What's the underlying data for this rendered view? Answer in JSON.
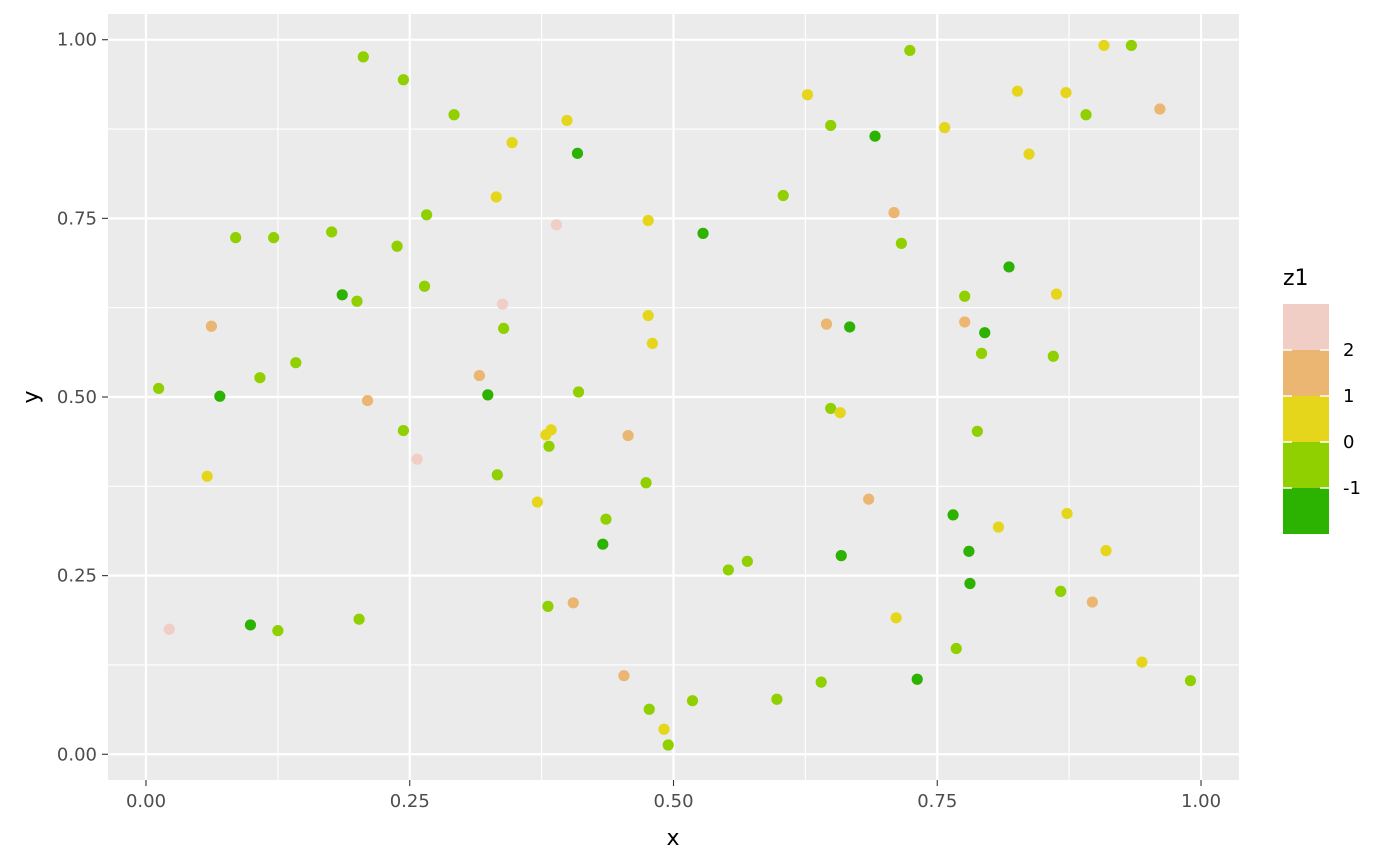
{
  "chart_data": {
    "type": "scatter",
    "xlabel": "x",
    "ylabel": "y",
    "xlim": [
      -0.036,
      1.036
    ],
    "ylim": [
      -0.036,
      1.036
    ],
    "xticks": [
      {
        "v": 0,
        "label": "0.00"
      },
      {
        "v": 0.25,
        "label": "0.25"
      },
      {
        "v": 0.5,
        "label": "0.50"
      },
      {
        "v": 0.75,
        "label": "0.75"
      },
      {
        "v": 1,
        "label": "1.00"
      }
    ],
    "yticks": [
      {
        "v": 0,
        "label": "0.00"
      },
      {
        "v": 0.25,
        "label": "0.25"
      },
      {
        "v": 0.5,
        "label": "0.50"
      },
      {
        "v": 0.75,
        "label": "0.75"
      },
      {
        "v": 1,
        "label": "1.00"
      }
    ],
    "minor_breaks": [
      0.125,
      0.375,
      0.625,
      0.875
    ],
    "grid": true,
    "panel_background": "#ebebeb",
    "grid_color": "#ffffff",
    "legend": {
      "title": "z1",
      "position": "right",
      "steps": [
        {
          "label": "",
          "color": "#f0cdc5"
        },
        {
          "label": "2",
          "color": "#ebb572"
        },
        {
          "label": "1",
          "color": "#e5d61c"
        },
        {
          "label": "0",
          "color": "#90d000"
        },
        {
          "label": "-1",
          "color": "#2cb200"
        }
      ]
    },
    "level_colors": {
      "-2": "#2cb200",
      "-1": "#90d000",
      "0": "#e5d61c",
      "1": "#ebb572",
      "2": "#f0cdc5"
    },
    "points": [
      {
        "x": 0.206,
        "y": 0.976,
        "level": -1
      },
      {
        "x": 0.244,
        "y": 0.944,
        "level": -1
      },
      {
        "x": 0.292,
        "y": 0.895,
        "level": -1
      },
      {
        "x": 0.347,
        "y": 0.856,
        "level": 0
      },
      {
        "x": 0.399,
        "y": 0.887,
        "level": 0
      },
      {
        "x": 0.409,
        "y": 0.841,
        "level": -2
      },
      {
        "x": 0.724,
        "y": 0.985,
        "level": -1
      },
      {
        "x": 0.627,
        "y": 0.923,
        "level": 0
      },
      {
        "x": 0.649,
        "y": 0.88,
        "level": -1
      },
      {
        "x": 0.691,
        "y": 0.865,
        "level": -2
      },
      {
        "x": 0.757,
        "y": 0.877,
        "level": 0
      },
      {
        "x": 0.826,
        "y": 0.928,
        "level": 0
      },
      {
        "x": 0.837,
        "y": 0.84,
        "level": 0
      },
      {
        "x": 0.872,
        "y": 0.926,
        "level": 0
      },
      {
        "x": 0.891,
        "y": 0.895,
        "level": -1
      },
      {
        "x": 0.908,
        "y": 0.992,
        "level": 0
      },
      {
        "x": 0.934,
        "y": 0.992,
        "level": -1
      },
      {
        "x": 0.961,
        "y": 0.903,
        "level": 1
      },
      {
        "x": 0.085,
        "y": 0.723,
        "level": -1
      },
      {
        "x": 0.121,
        "y": 0.723,
        "level": -1
      },
      {
        "x": 0.176,
        "y": 0.731,
        "level": -1
      },
      {
        "x": 0.238,
        "y": 0.711,
        "level": -1
      },
      {
        "x": 0.266,
        "y": 0.755,
        "level": -1
      },
      {
        "x": 0.332,
        "y": 0.78,
        "level": 0
      },
      {
        "x": 0.389,
        "y": 0.741,
        "level": 2
      },
      {
        "x": 0.476,
        "y": 0.747,
        "level": 0
      },
      {
        "x": 0.528,
        "y": 0.729,
        "level": -2
      },
      {
        "x": 0.604,
        "y": 0.782,
        "level": -1
      },
      {
        "x": 0.709,
        "y": 0.758,
        "level": 1
      },
      {
        "x": 0.716,
        "y": 0.715,
        "level": -1
      },
      {
        "x": 0.818,
        "y": 0.682,
        "level": -2
      },
      {
        "x": 0.186,
        "y": 0.643,
        "level": -2
      },
      {
        "x": 0.2,
        "y": 0.634,
        "level": -1
      },
      {
        "x": 0.264,
        "y": 0.655,
        "level": -1
      },
      {
        "x": 0.338,
        "y": 0.63,
        "level": 2
      },
      {
        "x": 0.339,
        "y": 0.596,
        "level": -1
      },
      {
        "x": 0.476,
        "y": 0.614,
        "level": 0
      },
      {
        "x": 0.48,
        "y": 0.575,
        "level": 0
      },
      {
        "x": 0.645,
        "y": 0.602,
        "level": 1
      },
      {
        "x": 0.667,
        "y": 0.598,
        "level": -2
      },
      {
        "x": 0.776,
        "y": 0.641,
        "level": -1
      },
      {
        "x": 0.776,
        "y": 0.605,
        "level": 1
      },
      {
        "x": 0.795,
        "y": 0.59,
        "level": -2
      },
      {
        "x": 0.792,
        "y": 0.561,
        "level": -1
      },
      {
        "x": 0.86,
        "y": 0.557,
        "level": -1
      },
      {
        "x": 0.863,
        "y": 0.644,
        "level": 0
      },
      {
        "x": 0.062,
        "y": 0.599,
        "level": 1
      },
      {
        "x": 0.012,
        "y": 0.512,
        "level": -1
      },
      {
        "x": 0.07,
        "y": 0.501,
        "level": -2
      },
      {
        "x": 0.108,
        "y": 0.527,
        "level": -1
      },
      {
        "x": 0.142,
        "y": 0.548,
        "level": -1
      },
      {
        "x": 0.21,
        "y": 0.495,
        "level": 1
      },
      {
        "x": 0.316,
        "y": 0.53,
        "level": 1
      },
      {
        "x": 0.324,
        "y": 0.503,
        "level": -2
      },
      {
        "x": 0.41,
        "y": 0.507,
        "level": -1
      },
      {
        "x": 0.244,
        "y": 0.453,
        "level": -1
      },
      {
        "x": 0.257,
        "y": 0.413,
        "level": 2
      },
      {
        "x": 0.379,
        "y": 0.447,
        "level": 0
      },
      {
        "x": 0.384,
        "y": 0.454,
        "level": 0
      },
      {
        "x": 0.382,
        "y": 0.431,
        "level": -1
      },
      {
        "x": 0.457,
        "y": 0.446,
        "level": 1
      },
      {
        "x": 0.649,
        "y": 0.484,
        "level": -1
      },
      {
        "x": 0.658,
        "y": 0.478,
        "level": 0
      },
      {
        "x": 0.788,
        "y": 0.452,
        "level": -1
      },
      {
        "x": 0.058,
        "y": 0.389,
        "level": 0
      },
      {
        "x": 0.333,
        "y": 0.391,
        "level": -1
      },
      {
        "x": 0.371,
        "y": 0.353,
        "level": 0
      },
      {
        "x": 0.436,
        "y": 0.329,
        "level": -1
      },
      {
        "x": 0.433,
        "y": 0.294,
        "level": -2
      },
      {
        "x": 0.474,
        "y": 0.38,
        "level": -1
      },
      {
        "x": 0.685,
        "y": 0.357,
        "level": 1
      },
      {
        "x": 0.765,
        "y": 0.335,
        "level": -2
      },
      {
        "x": 0.78,
        "y": 0.284,
        "level": -2
      },
      {
        "x": 0.808,
        "y": 0.318,
        "level": 0
      },
      {
        "x": 0.873,
        "y": 0.337,
        "level": 0
      },
      {
        "x": 0.91,
        "y": 0.285,
        "level": 0
      },
      {
        "x": 0.552,
        "y": 0.258,
        "level": -1
      },
      {
        "x": 0.57,
        "y": 0.27,
        "level": -1
      },
      {
        "x": 0.659,
        "y": 0.278,
        "level": -2
      },
      {
        "x": 0.781,
        "y": 0.239,
        "level": -2
      },
      {
        "x": 0.867,
        "y": 0.228,
        "level": -1
      },
      {
        "x": 0.897,
        "y": 0.213,
        "level": 1
      },
      {
        "x": 0.022,
        "y": 0.175,
        "level": 2
      },
      {
        "x": 0.099,
        "y": 0.181,
        "level": -2
      },
      {
        "x": 0.125,
        "y": 0.173,
        "level": -1
      },
      {
        "x": 0.202,
        "y": 0.189,
        "level": -1
      },
      {
        "x": 0.381,
        "y": 0.207,
        "level": -1
      },
      {
        "x": 0.405,
        "y": 0.212,
        "level": 1
      },
      {
        "x": 0.711,
        "y": 0.191,
        "level": 0
      },
      {
        "x": 0.768,
        "y": 0.148,
        "level": -1
      },
      {
        "x": 0.944,
        "y": 0.129,
        "level": 0
      },
      {
        "x": 0.453,
        "y": 0.11,
        "level": 1
      },
      {
        "x": 0.477,
        "y": 0.063,
        "level": -1
      },
      {
        "x": 0.491,
        "y": 0.035,
        "level": 0
      },
      {
        "x": 0.495,
        "y": 0.013,
        "level": -1
      },
      {
        "x": 0.518,
        "y": 0.075,
        "level": -1
      },
      {
        "x": 0.598,
        "y": 0.077,
        "level": -1
      },
      {
        "x": 0.64,
        "y": 0.101,
        "level": -1
      },
      {
        "x": 0.731,
        "y": 0.105,
        "level": -2
      },
      {
        "x": 0.99,
        "y": 0.103,
        "level": -1
      }
    ]
  }
}
